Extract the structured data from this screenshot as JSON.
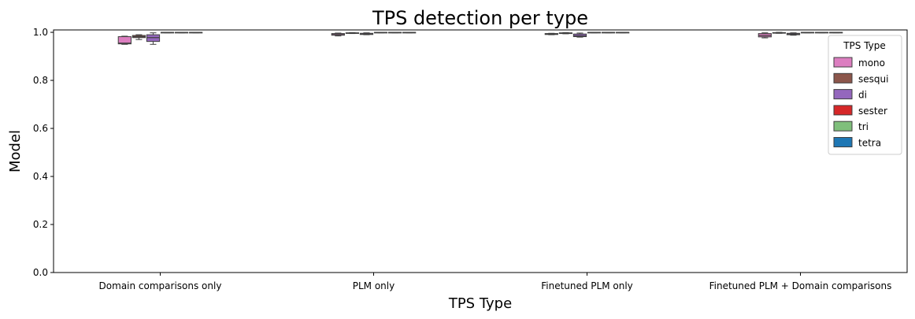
{
  "chart_data": {
    "type": "box",
    "title": "TPS detection per type",
    "xlabel": "TPS Type",
    "ylabel": "Model",
    "ylim": [
      0,
      1.01
    ],
    "yticks": [
      "0.0",
      "0.2",
      "0.4",
      "0.6",
      "0.8",
      "1.0"
    ],
    "categories": [
      "Domain comparisons only",
      "PLM only",
      "Finetuned PLM only",
      "Finetuned PLM + Domain comparisons"
    ],
    "legend": {
      "title": "TPS Type",
      "placement": "top-right"
    },
    "series": [
      {
        "name": "mono",
        "color": "#dc7ec0",
        "boxes": [
          {
            "whislo": 0.95,
            "q1": 0.952,
            "med": 0.955,
            "q3": 0.982,
            "whishi": 0.984
          },
          {
            "whislo": 0.985,
            "q1": 0.988,
            "med": 0.991,
            "q3": 0.995,
            "whishi": 0.997
          },
          {
            "whislo": 0.99,
            "q1": 0.991,
            "med": 0.993,
            "q3": 0.995,
            "whishi": 0.996
          },
          {
            "whislo": 0.977,
            "q1": 0.981,
            "med": 0.987,
            "q3": 0.995,
            "whishi": 0.998
          }
        ]
      },
      {
        "name": "sesqui",
        "color": "#8c564b",
        "boxes": [
          {
            "whislo": 0.97,
            "q1": 0.978,
            "med": 0.982,
            "q3": 0.987,
            "whishi": 0.99
          },
          {
            "whislo": 0.995,
            "q1": 0.996,
            "med": 0.997,
            "q3": 0.998,
            "whishi": 0.999
          },
          {
            "whislo": 0.994,
            "q1": 0.995,
            "med": 0.996,
            "q3": 0.998,
            "whishi": 0.999
          },
          {
            "whislo": 0.996,
            "q1": 0.997,
            "med": 0.998,
            "q3": 0.999,
            "whishi": 1.0
          }
        ]
      },
      {
        "name": "di",
        "color": "#9467bd",
        "boxes": [
          {
            "whislo": 0.95,
            "q1": 0.962,
            "med": 0.978,
            "q3": 0.99,
            "whishi": 0.998
          },
          {
            "whislo": 0.99,
            "q1": 0.991,
            "med": 0.993,
            "q3": 0.996,
            "whishi": 0.998
          },
          {
            "whislo": 0.98,
            "q1": 0.982,
            "med": 0.986,
            "q3": 0.993,
            "whishi": 0.997
          },
          {
            "whislo": 0.988,
            "q1": 0.99,
            "med": 0.993,
            "q3": 0.996,
            "whishi": 0.998
          }
        ]
      },
      {
        "name": "sester",
        "color": "#d62728",
        "boxes": [
          {
            "whislo": 0.998,
            "q1": 0.999,
            "med": 1.0,
            "q3": 1.0,
            "whishi": 1.0
          },
          {
            "whislo": 0.998,
            "q1": 0.999,
            "med": 1.0,
            "q3": 1.0,
            "whishi": 1.0
          },
          {
            "whislo": 0.998,
            "q1": 0.999,
            "med": 1.0,
            "q3": 1.0,
            "whishi": 1.0
          },
          {
            "whislo": 0.998,
            "q1": 0.999,
            "med": 1.0,
            "q3": 1.0,
            "whishi": 1.0
          }
        ]
      },
      {
        "name": "tri",
        "color": "#7fbf7b",
        "boxes": [
          {
            "whislo": 0.998,
            "q1": 0.999,
            "med": 1.0,
            "q3": 1.0,
            "whishi": 1.0
          },
          {
            "whislo": 0.998,
            "q1": 0.999,
            "med": 1.0,
            "q3": 1.0,
            "whishi": 1.0
          },
          {
            "whislo": 0.998,
            "q1": 0.999,
            "med": 1.0,
            "q3": 1.0,
            "whishi": 1.0
          },
          {
            "whislo": 0.998,
            "q1": 0.999,
            "med": 1.0,
            "q3": 1.0,
            "whishi": 1.0
          }
        ]
      },
      {
        "name": "tetra",
        "color": "#1f77b4",
        "boxes": [
          {
            "whislo": 0.998,
            "q1": 0.999,
            "med": 1.0,
            "q3": 1.0,
            "whishi": 1.0
          },
          {
            "whislo": 0.998,
            "q1": 0.999,
            "med": 1.0,
            "q3": 1.0,
            "whishi": 1.0
          },
          {
            "whislo": 0.998,
            "q1": 0.999,
            "med": 1.0,
            "q3": 1.0,
            "whishi": 1.0
          },
          {
            "whislo": 0.998,
            "q1": 0.999,
            "med": 1.0,
            "q3": 1.0,
            "whishi": 1.0
          }
        ]
      }
    ]
  }
}
